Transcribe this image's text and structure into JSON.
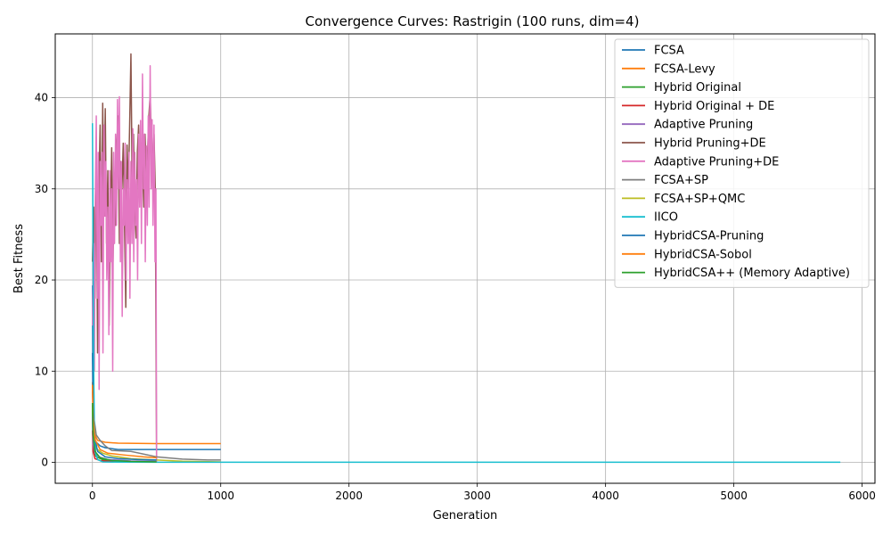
{
  "chart_data": {
    "type": "line",
    "title": "Convergence Curves: Rastrigin (100 runs, dim=4)",
    "xlabel": "Generation",
    "ylabel": "Best Fitness",
    "xlim": [
      -290,
      6100
    ],
    "ylim": [
      -2.3,
      47
    ],
    "xticks": [
      0,
      1000,
      2000,
      3000,
      4000,
      5000,
      6000
    ],
    "yticks": [
      0,
      10,
      20,
      30,
      40
    ],
    "grid": true,
    "legend_position": "top-right",
    "series": [
      {
        "name": "FCSA",
        "color": "#1f77b4",
        "points": [
          [
            0,
            19.4
          ],
          [
            3,
            11
          ],
          [
            8,
            5
          ],
          [
            15,
            2.5
          ],
          [
            30,
            2.2
          ],
          [
            60,
            1.8
          ],
          [
            100,
            1.6
          ],
          [
            200,
            1.4
          ],
          [
            500,
            1.4
          ],
          [
            1000,
            1.4
          ]
        ]
      },
      {
        "name": "FCSA-Levy",
        "color": "#ff7f0e",
        "points": [
          [
            0,
            8.8
          ],
          [
            5,
            5
          ],
          [
            15,
            3.2
          ],
          [
            40,
            2.4
          ],
          [
            100,
            2.2
          ],
          [
            200,
            2.1
          ],
          [
            500,
            2.05
          ],
          [
            1000,
            2.05
          ]
        ]
      },
      {
        "name": "Hybrid Original",
        "color": "#2ca02c",
        "points": [
          [
            0,
            6.3
          ],
          [
            3,
            3
          ],
          [
            10,
            1.2
          ],
          [
            30,
            0.6
          ],
          [
            80,
            0.3
          ],
          [
            150,
            0.15
          ],
          [
            300,
            0.1
          ],
          [
            500,
            0.1
          ]
        ]
      },
      {
        "name": "Hybrid Original + DE",
        "color": "#d62728",
        "points": [
          [
            0,
            3.5
          ],
          [
            5,
            1.2
          ],
          [
            20,
            0.4
          ],
          [
            60,
            0.2
          ],
          [
            150,
            0.1
          ],
          [
            300,
            0.05
          ],
          [
            500,
            0.05
          ]
        ]
      },
      {
        "name": "Adaptive Pruning",
        "color": "#9467bd",
        "points": [
          [
            0,
            5
          ],
          [
            5,
            2
          ],
          [
            20,
            1
          ],
          [
            50,
            0.6
          ],
          [
            120,
            0.3
          ],
          [
            300,
            0.15
          ],
          [
            500,
            0.1
          ]
        ]
      },
      {
        "name": "Hybrid Pruning+DE",
        "color": "#8c564b",
        "points": [
          [
            0,
            22
          ],
          [
            10,
            28
          ],
          [
            20,
            18
          ],
          [
            30,
            34
          ],
          [
            40,
            12
          ],
          [
            50,
            30
          ],
          [
            60,
            37
          ],
          [
            70,
            22
          ],
          [
            80,
            39.4
          ],
          [
            90,
            27
          ],
          [
            100,
            38.8
          ],
          [
            110,
            24
          ],
          [
            120,
            32
          ],
          [
            130,
            15
          ],
          [
            140,
            26
          ],
          [
            150,
            34.5
          ],
          [
            160,
            22
          ],
          [
            170,
            30
          ],
          [
            180,
            26
          ],
          [
            190,
            35
          ],
          [
            200,
            38
          ],
          [
            210,
            24
          ],
          [
            220,
            33
          ],
          [
            230,
            30
          ],
          [
            240,
            35
          ],
          [
            250,
            26
          ],
          [
            260,
            17
          ],
          [
            270,
            34.8
          ],
          [
            280,
            30
          ],
          [
            290,
            37
          ],
          [
            300,
            44.8
          ],
          [
            310,
            30
          ],
          [
            320,
            36
          ],
          [
            330,
            28
          ],
          [
            340,
            24.6
          ],
          [
            350,
            34
          ],
          [
            360,
            37
          ],
          [
            370,
            30
          ],
          [
            380,
            35
          ],
          [
            390,
            33
          ],
          [
            400,
            28
          ],
          [
            410,
            36
          ],
          [
            420,
            31
          ],
          [
            430,
            34
          ],
          [
            440,
            38
          ],
          [
            450,
            40.3
          ],
          [
            460,
            35
          ],
          [
            470,
            32
          ],
          [
            480,
            36
          ],
          [
            490,
            30
          ],
          [
            500,
            0
          ]
        ]
      },
      {
        "name": "Adaptive Pruning+DE",
        "color": "#e377c2",
        "points": [
          [
            0,
            15
          ],
          [
            8,
            24
          ],
          [
            15,
            10
          ],
          [
            22,
            29
          ],
          [
            30,
            38
          ],
          [
            38,
            18
          ],
          [
            45,
            34
          ],
          [
            52,
            8
          ],
          [
            60,
            33
          ],
          [
            68,
            26
          ],
          [
            75,
            34
          ],
          [
            82,
            12
          ],
          [
            90,
            37
          ],
          [
            98,
            27
          ],
          [
            105,
            33
          ],
          [
            112,
            20
          ],
          [
            120,
            28
          ],
          [
            128,
            14
          ],
          [
            135,
            32
          ],
          [
            142,
            22
          ],
          [
            150,
            30
          ],
          [
            158,
            10
          ],
          [
            165,
            34
          ],
          [
            172,
            24
          ],
          [
            180,
            36
          ],
          [
            188,
            26
          ],
          [
            195,
            39.8
          ],
          [
            202,
            30
          ],
          [
            210,
            40.1
          ],
          [
            218,
            22
          ],
          [
            225,
            33
          ],
          [
            232,
            16
          ],
          [
            240,
            30
          ],
          [
            248,
            26
          ],
          [
            255,
            35
          ],
          [
            262,
            20
          ],
          [
            270,
            31
          ],
          [
            278,
            24
          ],
          [
            285,
            34
          ],
          [
            292,
            18
          ],
          [
            300,
            33
          ],
          [
            308,
            24
          ],
          [
            315,
            36.6
          ],
          [
            322,
            22
          ],
          [
            330,
            34
          ],
          [
            338,
            26
          ],
          [
            345,
            31
          ],
          [
            352,
            20
          ],
          [
            360,
            36
          ],
          [
            368,
            28
          ],
          [
            375,
            37.5
          ],
          [
            382,
            24
          ],
          [
            390,
            42.6
          ],
          [
            398,
            30
          ],
          [
            405,
            36
          ],
          [
            412,
            22
          ],
          [
            420,
            34.7
          ],
          [
            428,
            26
          ],
          [
            435,
            38
          ],
          [
            442,
            28
          ],
          [
            450,
            43.5
          ],
          [
            458,
            30
          ],
          [
            465,
            37.6
          ],
          [
            472,
            26
          ],
          [
            480,
            37
          ],
          [
            488,
            22
          ],
          [
            495,
            30
          ],
          [
            500,
            0
          ]
        ]
      },
      {
        "name": "FCSA+SP",
        "color": "#7f7f7f",
        "points": [
          [
            0,
            7.8
          ],
          [
            10,
            5
          ],
          [
            30,
            3
          ],
          [
            60,
            2.4
          ],
          [
            100,
            1.8
          ],
          [
            150,
            1.3
          ],
          [
            300,
            1.2
          ],
          [
            500,
            0.6
          ],
          [
            700,
            0.35
          ],
          [
            900,
            0.25
          ],
          [
            1000,
            0.25
          ]
        ]
      },
      {
        "name": "FCSA+SP+QMC",
        "color": "#bcbd22",
        "points": [
          [
            0,
            6
          ],
          [
            10,
            3
          ],
          [
            30,
            1.5
          ],
          [
            80,
            1
          ],
          [
            150,
            0.7
          ],
          [
            300,
            0.4
          ],
          [
            500,
            0.25
          ],
          [
            700,
            0.12
          ],
          [
            1000,
            0.05
          ]
        ]
      },
      {
        "name": "IICO",
        "color": "#17becf",
        "points": [
          [
            0,
            37.2
          ],
          [
            3,
            30
          ],
          [
            6,
            20
          ],
          [
            10,
            10
          ],
          [
            15,
            4
          ],
          [
            25,
            1
          ],
          [
            40,
            0.3
          ],
          [
            80,
            0.05
          ],
          [
            200,
            0.02
          ],
          [
            500,
            0.01
          ],
          [
            1000,
            0.01
          ],
          [
            2000,
            0.01
          ],
          [
            3000,
            0.01
          ],
          [
            4000,
            0.01
          ],
          [
            5000,
            0.01
          ],
          [
            5830,
            0.01
          ]
        ]
      },
      {
        "name": "HybridCSA-Pruning",
        "color": "#1f77b4",
        "points": [
          [
            0,
            12
          ],
          [
            5,
            6
          ],
          [
            15,
            3
          ],
          [
            40,
            1.2
          ],
          [
            100,
            0.6
          ],
          [
            200,
            0.4
          ],
          [
            350,
            0.3
          ],
          [
            500,
            0.25
          ]
        ]
      },
      {
        "name": "HybridCSA-Sobol",
        "color": "#ff7f0e",
        "points": [
          [
            0,
            8.5
          ],
          [
            5,
            5
          ],
          [
            20,
            2.5
          ],
          [
            60,
            1.4
          ],
          [
            120,
            1.0
          ],
          [
            250,
            0.8
          ],
          [
            400,
            0.6
          ],
          [
            500,
            0.5
          ]
        ]
      },
      {
        "name": "HybridCSA++ (Memory Adaptive)",
        "color": "#2ca02c",
        "points": [
          [
            0,
            6.5
          ],
          [
            5,
            3
          ],
          [
            20,
            1.2
          ],
          [
            60,
            0.5
          ],
          [
            150,
            0.2
          ],
          [
            300,
            0.1
          ],
          [
            500,
            0.05
          ]
        ]
      }
    ]
  }
}
